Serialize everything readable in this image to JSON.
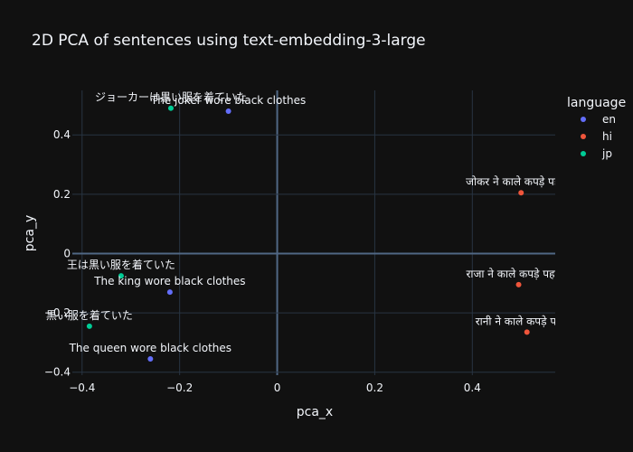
{
  "chart_data": {
    "type": "scatter",
    "title": "2D PCA of sentences using text-embedding-3-large",
    "xlabel": "pca_x",
    "ylabel": "pca_y",
    "xlim": [
      -0.42,
      0.57
    ],
    "ylim": [
      -0.41,
      0.55
    ],
    "xticks": [
      -0.4,
      -0.2,
      0,
      0.2,
      0.4
    ],
    "xtick_labels": [
      "−0.4",
      "−0.2",
      "0",
      "0.2",
      "0.4"
    ],
    "yticks": [
      -0.4,
      -0.2,
      0,
      0.2,
      0.4
    ],
    "ytick_labels": [
      "−0.4",
      "−0.2",
      "0",
      "0.2",
      "0.4"
    ],
    "grid": true,
    "legend": {
      "title": "language",
      "placement": "right"
    },
    "series": [
      {
        "name": "en",
        "color": "#636efa",
        "points": [
          {
            "x": -0.1,
            "y": 0.48,
            "label": "The joker wore black clothes"
          },
          {
            "x": -0.22,
            "y": -0.13,
            "label": "The king wore black clothes"
          },
          {
            "x": -0.26,
            "y": -0.355,
            "label": "The queen wore black clothes"
          }
        ]
      },
      {
        "name": "hi",
        "color": "#ef553b",
        "points": [
          {
            "x": 0.5,
            "y": 0.205,
            "label": "जोकर ने काले कपड़े पहने थे"
          },
          {
            "x": 0.495,
            "y": -0.105,
            "label": "राजा ने काले कपड़े पहने थे"
          },
          {
            "x": 0.512,
            "y": -0.265,
            "label": "रानी ने काले कपड़े पहने थे"
          }
        ]
      },
      {
        "name": "jp",
        "color": "#00cc96",
        "points": [
          {
            "x": -0.218,
            "y": 0.49,
            "label": "ジョーカーは黒い服を着ていた"
          },
          {
            "x": -0.32,
            "y": -0.075,
            "label": "王は黒い服を着ていた"
          },
          {
            "x": -0.385,
            "y": -0.245,
            "label": "黒い服を着ていた"
          }
        ]
      }
    ]
  }
}
